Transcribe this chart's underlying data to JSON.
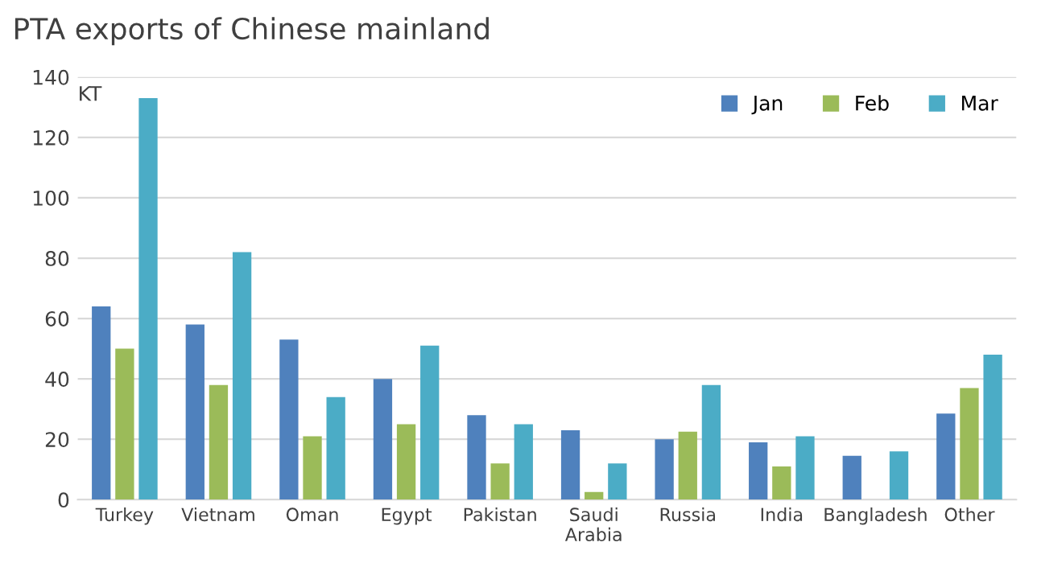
{
  "chart_data": {
    "type": "bar",
    "title": "PTA exports of Chinese mainland",
    "ylabel": "KT",
    "categories": [
      "Turkey",
      "Vietnam",
      "Oman",
      "Egypt",
      "Pakistan",
      "Saudi\nArabia",
      "Russia",
      "India",
      "Bangladesh",
      "Other"
    ],
    "series": [
      {
        "name": "Jan",
        "color": "#4f81bd",
        "values": [
          64,
          58,
          53,
          40,
          28,
          23,
          20,
          19,
          14.5,
          28.5
        ]
      },
      {
        "name": "Feb",
        "color": "#9bbb59",
        "values": [
          50,
          38,
          21,
          25,
          12,
          2.5,
          22.5,
          11,
          null,
          37
        ]
      },
      {
        "name": "Mar",
        "color": "#4bacc6",
        "values": [
          133,
          82,
          34,
          51,
          25,
          12,
          38,
          21,
          16,
          48
        ]
      }
    ],
    "ylim": [
      0,
      140
    ],
    "yticks": [
      0,
      20,
      40,
      60,
      80,
      100,
      120,
      140
    ],
    "grid": "y",
    "legend": "top right"
  }
}
